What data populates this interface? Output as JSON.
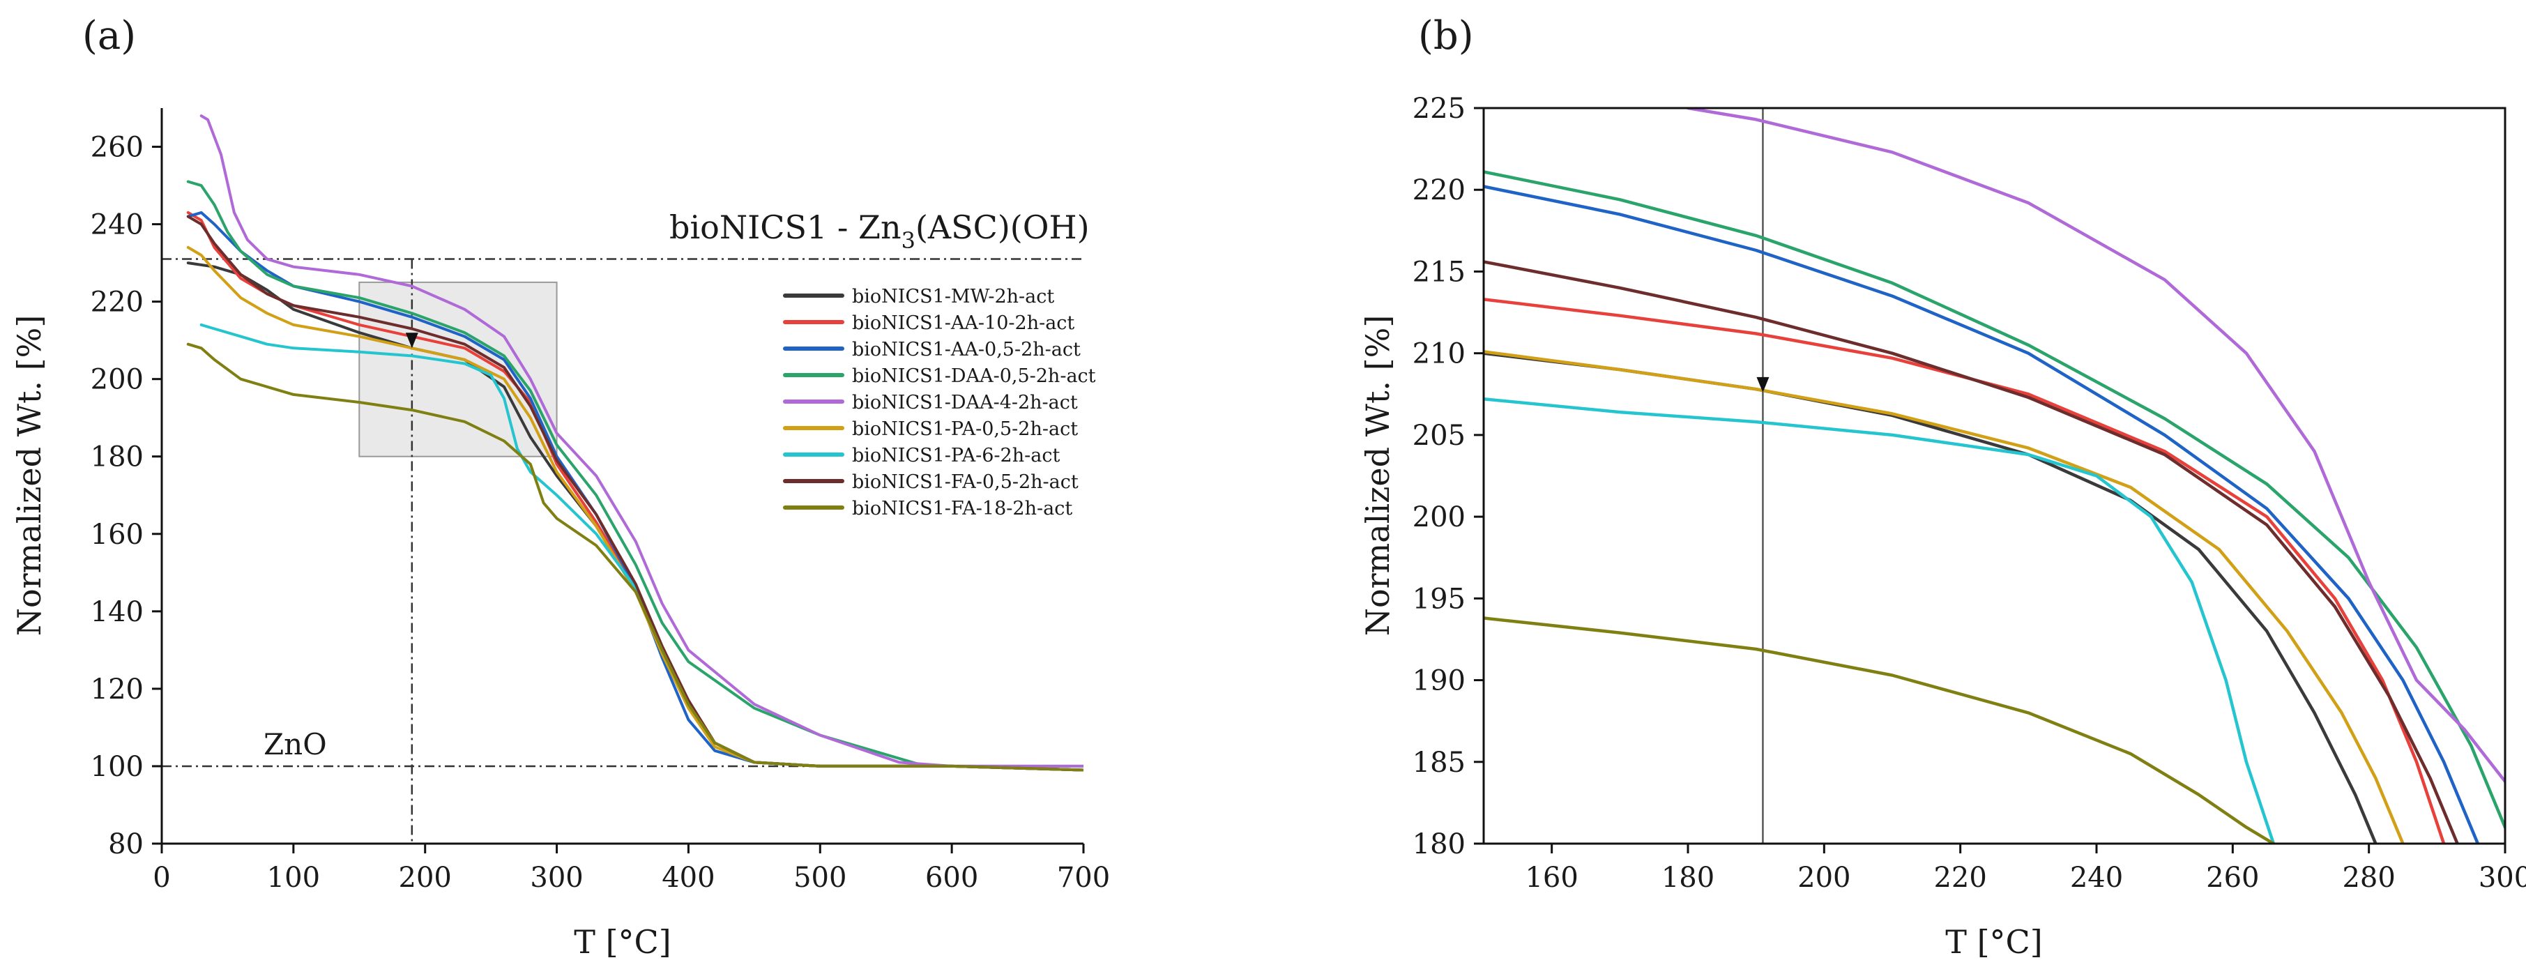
{
  "colors": {
    "MW": "#3a3a3a",
    "AA10": "#e8403a",
    "AA05": "#1f63c7",
    "DAA05": "#2aa46a",
    "DAA4": "#b06ad8",
    "PA05": "#d1a017",
    "PA6": "#25c5cf",
    "FA05": "#6e2d2d",
    "FA18": "#7f7f12"
  },
  "chart_data": [
    {
      "panel_label": "(a)",
      "type": "line",
      "xlabel": "T [°C]",
      "ylabel": "Normalized Wt. [%]",
      "xlim": [
        0,
        700
      ],
      "ylim": [
        80,
        270
      ],
      "xticks": [
        "0",
        "100",
        "200",
        "300",
        "400",
        "500",
        "600",
        "700"
      ],
      "yticks": [
        "80",
        "100",
        "120",
        "140",
        "160",
        "180",
        "200",
        "220",
        "240",
        "260"
      ],
      "annotations": {
        "top_label_main": "bioNICS1 - Zn",
        "top_label_sub": "3",
        "top_label_rest": "(ASC)(OH)",
        "top_line_y": 231,
        "bottom_label": "ZnO",
        "bottom_line_y": 100,
        "vertical_marker_x": 190,
        "zoom_box": {
          "x": [
            150,
            300
          ],
          "y": [
            180,
            225
          ]
        }
      },
      "legend": {
        "position": "center-right",
        "entries": [
          "bioNICS1-MW-2h-act",
          "bioNICS1-AA-10-2h-act",
          "bioNICS1-AA-0,5-2h-act",
          "bioNICS1-DAA-0,5-2h-act",
          "bioNICS1-DAA-4-2h-act",
          "bioNICS1-PA-0,5-2h-act",
          "bioNICS1-PA-6-2h-act",
          "bioNICS1-FA-0,5-2h-act",
          "bioNICS1-FA-18-2h-act"
        ]
      },
      "series": [
        {
          "name": "bioNICS1-MW-2h-act",
          "color_key": "MW",
          "x": [
            20,
            40,
            60,
            80,
            100,
            150,
            190,
            230,
            260,
            280,
            300,
            330,
            360,
            380,
            400,
            420,
            450,
            500,
            600,
            700
          ],
          "y": [
            230,
            229,
            227,
            223,
            218,
            212,
            208,
            205,
            198,
            185,
            175,
            162,
            145,
            130,
            117,
            106,
            101,
            100,
            100,
            99
          ]
        },
        {
          "name": "bioNICS1-AA-10-2h-act",
          "color_key": "AA10",
          "x": [
            20,
            30,
            40,
            60,
            80,
            100,
            150,
            190,
            230,
            260,
            280,
            300,
            330,
            360,
            380,
            400,
            420,
            450,
            500,
            600,
            700
          ],
          "y": [
            243,
            241,
            234,
            226,
            222,
            219,
            214,
            211,
            208,
            202,
            194,
            178,
            163,
            146,
            130,
            117,
            106,
            101,
            100,
            100,
            99
          ]
        },
        {
          "name": "bioNICS1-AA-0,5-2h-act",
          "color_key": "AA05",
          "x": [
            20,
            30,
            40,
            60,
            80,
            100,
            150,
            190,
            230,
            260,
            280,
            300,
            330,
            360,
            380,
            400,
            420,
            450,
            500,
            600,
            700
          ],
          "y": [
            242,
            243,
            240,
            233,
            228,
            224,
            220,
            216,
            211,
            205,
            195,
            180,
            165,
            146,
            128,
            112,
            104,
            101,
            100,
            100,
            99
          ]
        },
        {
          "name": "bioNICS1-DAA-0,5-2h-act",
          "color_key": "DAA05",
          "x": [
            20,
            30,
            40,
            50,
            60,
            80,
            100,
            150,
            190,
            230,
            260,
            280,
            300,
            330,
            360,
            380,
            400,
            450,
            500,
            580,
            600,
            700
          ],
          "y": [
            251,
            250,
            245,
            238,
            233,
            227,
            224,
            221,
            217,
            212,
            206,
            197,
            183,
            170,
            152,
            137,
            127,
            115,
            108,
            100,
            100,
            100
          ]
        },
        {
          "name": "bioNICS1-DAA-4-2h-act",
          "color_key": "DAA4",
          "x": [
            30,
            35,
            45,
            55,
            65,
            80,
            100,
            150,
            190,
            230,
            260,
            280,
            300,
            330,
            360,
            380,
            400,
            450,
            500,
            560,
            600,
            700
          ],
          "y": [
            268,
            267,
            258,
            243,
            236,
            231,
            229,
            227,
            224,
            218,
            211,
            200,
            186,
            175,
            158,
            142,
            130,
            116,
            108,
            101,
            100,
            100
          ]
        },
        {
          "name": "bioNICS1-PA-0,5-2h-act",
          "color_key": "PA05",
          "x": [
            20,
            30,
            40,
            60,
            80,
            100,
            150,
            190,
            230,
            260,
            280,
            300,
            330,
            360,
            380,
            400,
            420,
            450,
            500,
            600,
            700
          ],
          "y": [
            234,
            232,
            228,
            221,
            217,
            214,
            211,
            208,
            205,
            200,
            190,
            176,
            162,
            145,
            129,
            115,
            105,
            101,
            100,
            100,
            99
          ]
        },
        {
          "name": "bioNICS1-PA-6-2h-act",
          "color_key": "PA6",
          "x": [
            30,
            40,
            60,
            80,
            100,
            150,
            190,
            230,
            250,
            260,
            270,
            280,
            300,
            330,
            360,
            380,
            400,
            420,
            450,
            500,
            600,
            700
          ],
          "y": [
            214,
            213,
            211,
            209,
            208,
            207,
            206,
            204,
            201,
            195,
            182,
            176,
            170,
            160,
            146,
            130,
            116,
            106,
            101,
            100,
            100,
            99
          ]
        },
        {
          "name": "bioNICS1-FA-0,5-2h-act",
          "color_key": "FA05",
          "x": [
            20,
            30,
            40,
            60,
            80,
            100,
            150,
            190,
            230,
            260,
            280,
            300,
            330,
            360,
            380,
            400,
            420,
            450,
            500,
            600,
            700
          ],
          "y": [
            242,
            240,
            235,
            227,
            222,
            219,
            216,
            213,
            209,
            203,
            193,
            179,
            165,
            147,
            131,
            117,
            106,
            101,
            100,
            100,
            99
          ]
        },
        {
          "name": "bioNICS1-FA-18-2h-act",
          "color_key": "FA18",
          "x": [
            20,
            30,
            40,
            60,
            80,
            100,
            150,
            190,
            230,
            260,
            280,
            290,
            300,
            330,
            360,
            380,
            400,
            420,
            450,
            500,
            600,
            700
          ],
          "y": [
            209,
            208,
            205,
            200,
            198,
            196,
            194,
            192,
            189,
            184,
            178,
            168,
            164,
            157,
            145,
            130,
            116,
            106,
            101,
            100,
            100,
            99
          ]
        }
      ]
    },
    {
      "panel_label": "(b)",
      "type": "line",
      "xlabel": "T [°C]",
      "ylabel": "Normalized Wt. [%]",
      "xlim": [
        150,
        300
      ],
      "ylim": [
        180,
        225
      ],
      "xticks": [
        "160",
        "180",
        "200",
        "220",
        "240",
        "260",
        "280",
        "300"
      ],
      "yticks": [
        "180",
        "185",
        "190",
        "195",
        "200",
        "205",
        "210",
        "215",
        "220",
        "225"
      ],
      "annotations": {
        "vertical_marker_x": 191
      },
      "series": [
        {
          "name": "bioNICS1-MW-2h-act",
          "color_key": "MW",
          "x": [
            150,
            170,
            190,
            210,
            230,
            245,
            255,
            265,
            272,
            278,
            281
          ],
          "y": [
            210,
            209,
            207.8,
            206.2,
            203.8,
            201,
            198,
            193,
            188,
            183,
            180
          ]
        },
        {
          "name": "bioNICS1-AA-10-2h-act",
          "color_key": "AA10",
          "x": [
            150,
            170,
            190,
            210,
            230,
            250,
            265,
            275,
            282,
            287,
            291
          ],
          "y": [
            213.3,
            212.3,
            211.2,
            209.7,
            207.5,
            204,
            200,
            195,
            190,
            185,
            180
          ]
        },
        {
          "name": "bioNICS1-AA-0,5-2h-act",
          "color_key": "AA05",
          "x": [
            150,
            170,
            190,
            210,
            230,
            250,
            265,
            277,
            285,
            291,
            296
          ],
          "y": [
            220.2,
            218.5,
            216.3,
            213.5,
            210,
            205,
            200.5,
            195,
            190,
            185,
            180
          ]
        },
        {
          "name": "bioNICS1-DAA-0,5-2h-act",
          "color_key": "DAA05",
          "x": [
            150,
            170,
            190,
            210,
            230,
            250,
            265,
            277,
            287,
            295,
            300
          ],
          "y": [
            221.1,
            219.4,
            217.2,
            214.3,
            210.5,
            206,
            202,
            197.5,
            192,
            186,
            181
          ]
        },
        {
          "name": "bioNICS1-DAA-4-2h-act",
          "color_key": "DAA4",
          "x": [
            180,
            190,
            210,
            230,
            250,
            262,
            272,
            280,
            287,
            294,
            300
          ],
          "y": [
            225,
            224.3,
            222.3,
            219.2,
            214.5,
            210,
            204,
            196,
            190,
            187,
            183.8
          ]
        },
        {
          "name": "bioNICS1-PA-0,5-2h-act",
          "color_key": "PA05",
          "x": [
            150,
            170,
            190,
            210,
            230,
            245,
            258,
            268,
            276,
            281,
            285
          ],
          "y": [
            210.1,
            209,
            207.8,
            206.3,
            204.2,
            201.8,
            198,
            193,
            188,
            184,
            180
          ]
        },
        {
          "name": "bioNICS1-PA-6-2h-act",
          "color_key": "PA6",
          "x": [
            150,
            170,
            190,
            210,
            230,
            240,
            248,
            254,
            259,
            262,
            266
          ],
          "y": [
            207.2,
            206.4,
            205.8,
            205,
            203.8,
            202.5,
            200,
            196,
            190,
            185,
            180
          ]
        },
        {
          "name": "bioNICS1-FA-0,5-2h-act",
          "color_key": "FA05",
          "x": [
            150,
            170,
            190,
            210,
            230,
            250,
            265,
            275,
            283,
            289,
            293
          ],
          "y": [
            215.6,
            214,
            212.2,
            210,
            207.3,
            203.8,
            199.5,
            194.5,
            189,
            184,
            180
          ]
        },
        {
          "name": "bioNICS1-FA-18-2h-act",
          "color_key": "FA18",
          "x": [
            150,
            170,
            190,
            210,
            230,
            245,
            255,
            262,
            266
          ],
          "y": [
            193.8,
            192.9,
            191.9,
            190.3,
            188,
            185.5,
            183,
            181,
            180
          ]
        }
      ]
    }
  ]
}
